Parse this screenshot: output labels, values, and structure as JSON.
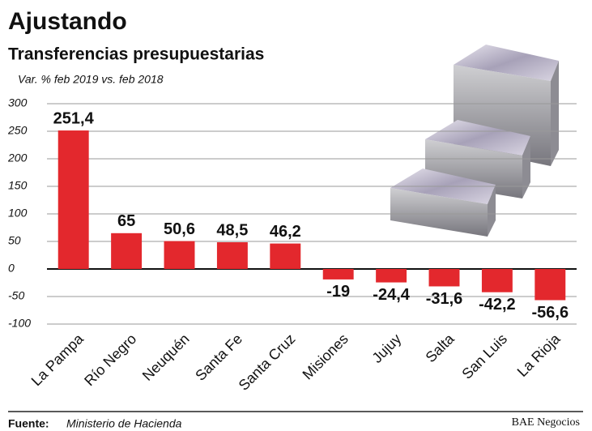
{
  "chart_data": {
    "type": "bar",
    "title": "Ajustando",
    "subtitle": "Transferencias presupuestarias",
    "y_label": "Var. % feb 2019 vs. feb 2018",
    "categories": [
      "La Pampa",
      "Río Negro",
      "Neuquén",
      "Santa Fe",
      "Santa Cruz",
      "Misiones",
      "Jujuy",
      "Salta",
      "San Luis",
      "La Rioja"
    ],
    "values": [
      251.4,
      65,
      50.6,
      48.5,
      46.2,
      -19,
      -24.4,
      -31.6,
      -42.2,
      -56.6
    ],
    "value_labels": [
      "251,4",
      "65",
      "50,6",
      "48,5",
      "46,2",
      "-19",
      "-24,4",
      "-31,6",
      "-42,2",
      "-56,6"
    ],
    "color": "#e3282d",
    "ylim": [
      -100,
      300
    ],
    "yticks": [
      300,
      250,
      200,
      150,
      100,
      50,
      0,
      -50,
      -100
    ],
    "grid": true
  },
  "footer": {
    "source_label": "Fuente:",
    "source": "Ministerio de Hacienda",
    "credit": "BAE Negocios"
  }
}
